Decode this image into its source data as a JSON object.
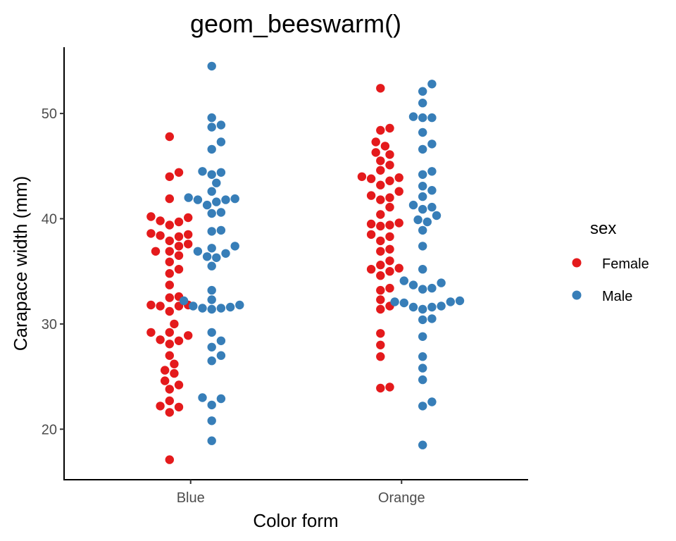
{
  "chart_data": {
    "type": "scatter",
    "subtype": "beeswarm",
    "title": "geom_beeswarm()",
    "xlabel": "Color form",
    "ylabel": "Carapace width (mm)",
    "categories": [
      "Blue",
      "Orange"
    ],
    "ylim": [
      15.2,
      56.3
    ],
    "yticks": [
      20,
      30,
      40,
      50
    ],
    "grid": false,
    "legend": {
      "title": "sex",
      "position": "right",
      "entries": [
        {
          "label": "Female",
          "color": "#E41A1C"
        },
        {
          "label": "Male",
          "color": "#377EB8"
        }
      ]
    },
    "series": [
      {
        "name": "Female",
        "color": "#E41A1C",
        "groups": [
          {
            "category": "Blue",
            "values": [
              17.1,
              21.6,
              22.1,
              22.2,
              22.7,
              23.8,
              24.2,
              24.6,
              25.3,
              25.6,
              26.2,
              27.0,
              28.1,
              28.4,
              28.5,
              28.9,
              29.2,
              29.2,
              30.0,
              31.2,
              31.7,
              31.7,
              31.8,
              31.8,
              32.5,
              32.6,
              33.7,
              34.8,
              35.2,
              35.9,
              36.5,
              36.9,
              36.9,
              37.4,
              37.6,
              37.9,
              38.3,
              38.4,
              38.5,
              38.6,
              39.4,
              39.7,
              39.8,
              40.1,
              40.2,
              41.9,
              44.0,
              44.4,
              47.8
            ]
          },
          {
            "category": "Orange",
            "values": [
              23.9,
              24.0,
              26.9,
              28.0,
              29.1,
              31.4,
              31.7,
              32.3,
              33.2,
              33.4,
              34.6,
              35.0,
              35.2,
              35.3,
              35.6,
              36.0,
              36.9,
              37.1,
              37.9,
              38.3,
              38.5,
              39.3,
              39.4,
              39.5,
              39.6,
              40.4,
              41.1,
              41.8,
              42.0,
              42.2,
              42.6,
              43.2,
              43.6,
              43.8,
              43.9,
              44.0,
              44.6,
              45.1,
              45.5,
              46.1,
              46.3,
              46.9,
              47.3,
              48.4,
              48.6,
              52.4
            ]
          }
        ]
      },
      {
        "name": "Male",
        "color": "#377EB8",
        "groups": [
          {
            "category": "Blue",
            "values": [
              18.9,
              20.8,
              22.3,
              22.9,
              23.0,
              26.5,
              27.0,
              27.8,
              28.4,
              29.2,
              31.4,
              31.5,
              31.5,
              31.6,
              31.7,
              31.8,
              32.2,
              32.3,
              33.2,
              35.5,
              36.3,
              36.4,
              36.7,
              36.9,
              37.2,
              37.4,
              38.8,
              38.9,
              40.5,
              40.6,
              41.3,
              41.6,
              41.8,
              41.8,
              41.9,
              42.0,
              42.6,
              43.4,
              44.2,
              44.4,
              44.5,
              46.6,
              47.3,
              48.7,
              48.9,
              49.6,
              54.5
            ]
          },
          {
            "category": "Orange",
            "values": [
              18.5,
              22.2,
              22.6,
              24.7,
              25.8,
              26.9,
              28.8,
              30.4,
              30.5,
              31.4,
              31.6,
              31.6,
              31.7,
              32.0,
              32.1,
              32.1,
              32.2,
              33.3,
              33.4,
              33.7,
              33.9,
              34.1,
              35.2,
              37.4,
              38.9,
              39.7,
              39.9,
              40.3,
              40.9,
              41.1,
              41.3,
              42.1,
              42.7,
              43.1,
              44.2,
              44.5,
              46.6,
              47.1,
              48.2,
              49.6,
              49.6,
              49.7,
              51.0,
              52.1,
              52.8
            ]
          }
        ]
      }
    ]
  }
}
